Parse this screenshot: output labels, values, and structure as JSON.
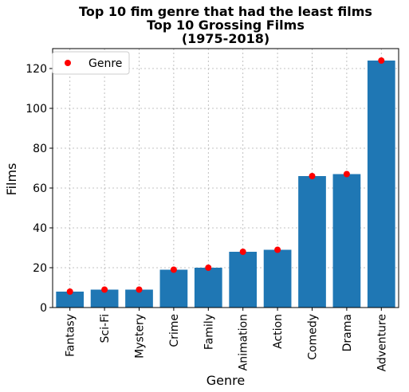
{
  "chart_data": {
    "type": "bar",
    "title_lines": [
      "Top 10 fim genre that had the least films",
      "Top 10 Grossing Films",
      "(1975-2018)"
    ],
    "xlabel": "Genre",
    "ylabel": "Films",
    "categories": [
      "Fantasy",
      "Sci-Fi",
      "Mystery",
      "Crime",
      "Family",
      "Animation",
      "Action",
      "Comedy",
      "Drama",
      "Adventure"
    ],
    "values": [
      8,
      9,
      9,
      19,
      20,
      28,
      29,
      66,
      67,
      124
    ],
    "markers": [
      8,
      9,
      9,
      19,
      20,
      28,
      29,
      66,
      67,
      124
    ],
    "ylim": [
      0,
      130
    ],
    "yticks": [
      0,
      20,
      40,
      60,
      80,
      100,
      120
    ],
    "grid": true,
    "legend": {
      "placement": "top-left",
      "entries": [
        "Genre"
      ]
    },
    "colors": {
      "bar": "#1f77b4",
      "marker": "#ff0000",
      "grid": "#b0b0b0"
    }
  }
}
